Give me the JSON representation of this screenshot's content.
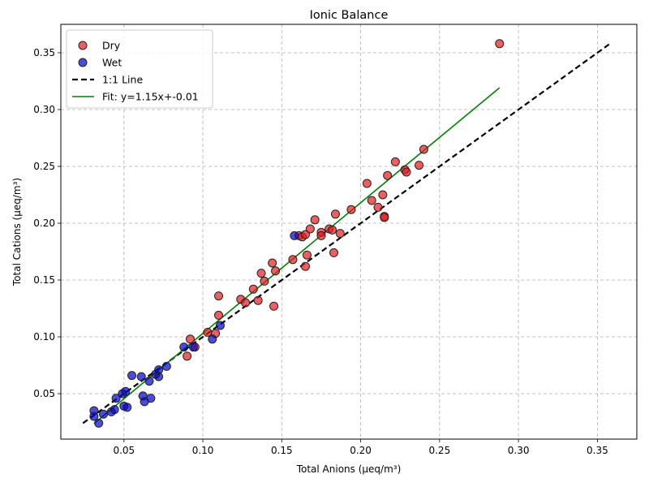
{
  "chart_data": {
    "type": "scatter",
    "title": "Ionic Balance",
    "xlabel": "Total Anions (μeq/m³)",
    "ylabel": "Total Cations (μeq/m³)",
    "xlim": [
      0.01,
      0.375
    ],
    "ylim": [
      0.01,
      0.375
    ],
    "xticks": [
      0.05,
      0.1,
      0.15,
      0.2,
      0.25,
      0.3,
      0.35
    ],
    "yticks": [
      0.05,
      0.1,
      0.15,
      0.2,
      0.25,
      0.3,
      0.35
    ],
    "tick_labels_x": [
      "0.05",
      "0.10",
      "0.15",
      "0.20",
      "0.25",
      "0.30",
      "0.35"
    ],
    "tick_labels_y": [
      "0.05",
      "0.10",
      "0.15",
      "0.20",
      "0.25",
      "0.30",
      "0.35"
    ],
    "grid": true,
    "legend_position": "top-left",
    "series": [
      {
        "name": "Dry",
        "kind": "points",
        "color": "#e41a1c",
        "points": [
          [
            0.09,
            0.083
          ],
          [
            0.092,
            0.098
          ],
          [
            0.095,
            0.091
          ],
          [
            0.103,
            0.104
          ],
          [
            0.108,
            0.103
          ],
          [
            0.11,
            0.119
          ],
          [
            0.11,
            0.136
          ],
          [
            0.124,
            0.133
          ],
          [
            0.127,
            0.13
          ],
          [
            0.132,
            0.142
          ],
          [
            0.135,
            0.132
          ],
          [
            0.137,
            0.156
          ],
          [
            0.139,
            0.149
          ],
          [
            0.144,
            0.165
          ],
          [
            0.145,
            0.127
          ],
          [
            0.146,
            0.158
          ],
          [
            0.157,
            0.168
          ],
          [
            0.161,
            0.189
          ],
          [
            0.163,
            0.188
          ],
          [
            0.165,
            0.19
          ],
          [
            0.165,
            0.162
          ],
          [
            0.166,
            0.172
          ],
          [
            0.168,
            0.195
          ],
          [
            0.171,
            0.203
          ],
          [
            0.175,
            0.192
          ],
          [
            0.175,
            0.189
          ],
          [
            0.18,
            0.195
          ],
          [
            0.182,
            0.194
          ],
          [
            0.183,
            0.174
          ],
          [
            0.184,
            0.208
          ],
          [
            0.187,
            0.191
          ],
          [
            0.194,
            0.212
          ],
          [
            0.204,
            0.235
          ],
          [
            0.207,
            0.22
          ],
          [
            0.211,
            0.214
          ],
          [
            0.214,
            0.225
          ],
          [
            0.215,
            0.206
          ],
          [
            0.215,
            0.205
          ],
          [
            0.217,
            0.242
          ],
          [
            0.222,
            0.254
          ],
          [
            0.228,
            0.247
          ],
          [
            0.229,
            0.245
          ],
          [
            0.237,
            0.251
          ],
          [
            0.24,
            0.265
          ],
          [
            0.288,
            0.358
          ]
        ]
      },
      {
        "name": "Wet",
        "kind": "points",
        "color": "#0000cc",
        "points": [
          [
            0.031,
            0.035
          ],
          [
            0.031,
            0.03
          ],
          [
            0.034,
            0.024
          ],
          [
            0.037,
            0.032
          ],
          [
            0.042,
            0.034
          ],
          [
            0.044,
            0.036
          ],
          [
            0.045,
            0.046
          ],
          [
            0.049,
            0.05
          ],
          [
            0.05,
            0.039
          ],
          [
            0.051,
            0.052
          ],
          [
            0.052,
            0.038
          ],
          [
            0.055,
            0.066
          ],
          [
            0.061,
            0.065
          ],
          [
            0.062,
            0.048
          ],
          [
            0.063,
            0.043
          ],
          [
            0.066,
            0.061
          ],
          [
            0.067,
            0.046
          ],
          [
            0.07,
            0.067
          ],
          [
            0.072,
            0.065
          ],
          [
            0.072,
            0.071
          ],
          [
            0.077,
            0.074
          ],
          [
            0.088,
            0.091
          ],
          [
            0.094,
            0.091
          ],
          [
            0.106,
            0.098
          ],
          [
            0.111,
            0.11
          ],
          [
            0.158,
            0.189
          ]
        ]
      },
      {
        "name": "1:1 Line",
        "kind": "line",
        "style": "dashed",
        "color": "#000000",
        "x": [
          0.024,
          0.358
        ],
        "y": [
          0.024,
          0.358
        ]
      },
      {
        "name": "Fit: y=1.15x+-0.01",
        "kind": "line",
        "style": "solid",
        "color": "#008000",
        "x": [
          0.031,
          0.288
        ],
        "y": [
          0.0237,
          0.3192
        ]
      }
    ]
  }
}
